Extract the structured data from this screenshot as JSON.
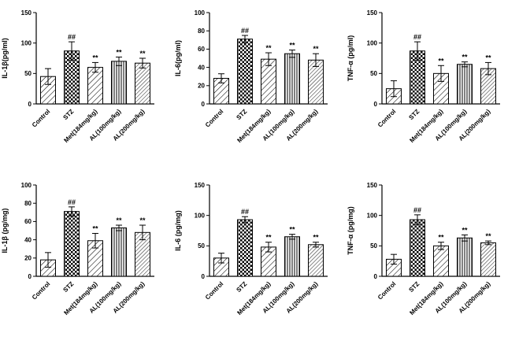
{
  "figure": {
    "background": "#ffffff",
    "axis_color": "#000000",
    "bar_stroke": "#000000"
  },
  "groups": [
    {
      "label": "Control",
      "pattern": "diagonal-medium"
    },
    {
      "label": "STZ",
      "pattern": "checkerboard"
    },
    {
      "label": "Met(184mg/kg)",
      "pattern": "diagonal-medium-2"
    },
    {
      "label": "AL(100mg/kg)",
      "pattern": "vertical-fine"
    },
    {
      "label": "AL(200mg/kg)",
      "pattern": "diagonal-fine"
    }
  ],
  "chart_data": [
    {
      "id": "il1b-pgml",
      "type": "bar",
      "ylabel": "IL-1β(pg/ml)",
      "ylim": [
        0,
        150
      ],
      "yticks": [
        0,
        50,
        100,
        150
      ],
      "categories": [
        "Control",
        "STZ",
        "Met(184mg/kg)",
        "AL(100mg/kg)",
        "AL(200mg/kg)"
      ],
      "values": [
        45,
        87,
        60,
        70,
        67
      ],
      "errors": [
        13,
        15,
        8,
        7,
        8
      ],
      "annotations": [
        "",
        "##",
        "**",
        "**",
        "**"
      ]
    },
    {
      "id": "il6-pgml",
      "type": "bar",
      "ylabel": "IL-6(pg/ml)",
      "ylim": [
        0,
        100
      ],
      "yticks": [
        0,
        20,
        40,
        60,
        80,
        100
      ],
      "categories": [
        "Control",
        "STZ",
        "Met(184mg/kg)",
        "AL(100mg/kg)",
        "AL(200mg/kg)"
      ],
      "values": [
        28,
        71,
        49,
        55,
        48
      ],
      "errors": [
        5,
        4,
        7,
        4,
        7
      ],
      "annotations": [
        "",
        "##",
        "**",
        "**",
        "**"
      ]
    },
    {
      "id": "tnfa-pgml",
      "type": "bar",
      "ylabel": "TNF-α (pg/ml)",
      "ylim": [
        0,
        150
      ],
      "yticks": [
        0,
        50,
        100,
        150
      ],
      "categories": [
        "Control",
        "STZ",
        "Met(184mg/kg)",
        "AL(100mg/kg)",
        "AL(200mg/kg)"
      ],
      "values": [
        25,
        87,
        50,
        65,
        58
      ],
      "errors": [
        13,
        15,
        13,
        4,
        10
      ],
      "annotations": [
        "",
        "##",
        "**",
        "**",
        "**"
      ]
    },
    {
      "id": "il1b-pgmg",
      "type": "bar",
      "ylabel": "IL-1β (pg/mg)",
      "ylim": [
        0,
        100
      ],
      "yticks": [
        0,
        20,
        40,
        60,
        80,
        100
      ],
      "categories": [
        "Control",
        "STZ",
        "Met(184mg/kg)",
        "AL(100mg/kg)",
        "AL(200mg/kg)"
      ],
      "values": [
        18,
        71,
        39,
        53,
        48
      ],
      "errors": [
        8,
        5,
        8,
        3,
        8
      ],
      "annotations": [
        "",
        "##",
        "**",
        "**",
        "**"
      ]
    },
    {
      "id": "il6-pgmg",
      "type": "bar",
      "ylabel": "IL-6 (pg/mg)",
      "ylim": [
        0,
        150
      ],
      "yticks": [
        0,
        50,
        100,
        150
      ],
      "categories": [
        "Control",
        "STZ",
        "Met(184mg/kg)",
        "AL(100mg/kg)",
        "AL(200mg/kg)"
      ],
      "values": [
        30,
        93,
        48,
        65,
        52
      ],
      "errors": [
        8,
        5,
        8,
        4,
        4
      ],
      "annotations": [
        "",
        "##",
        "**",
        "**",
        "**"
      ]
    },
    {
      "id": "tnfa-pgmg",
      "type": "bar",
      "ylabel": "TNF-α (pg/mg)",
      "ylim": [
        0,
        150
      ],
      "yticks": [
        0,
        50,
        100,
        150
      ],
      "categories": [
        "Control",
        "STZ",
        "Met(184mg/kg)",
        "AL(100mg/kg)",
        "AL(200mg/kg)"
      ],
      "values": [
        28,
        93,
        50,
        63,
        55
      ],
      "errors": [
        8,
        8,
        6,
        5,
        3
      ],
      "annotations": [
        "",
        "##",
        "**",
        "**",
        "**"
      ]
    }
  ]
}
